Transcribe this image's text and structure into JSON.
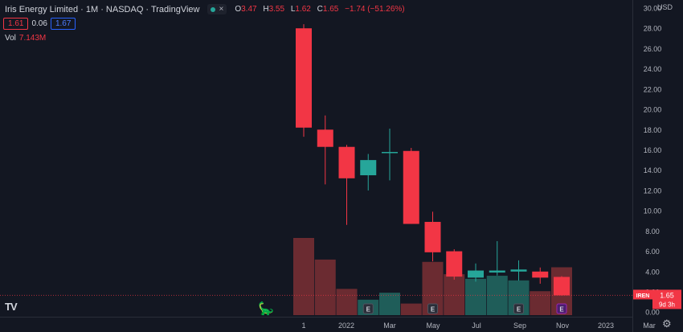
{
  "header": {
    "title": "Iris Energy Limited · 1M · NASDAQ · TradingView",
    "dot_label": "",
    "close_label": "×",
    "ohlc": {
      "o_label": "O",
      "o": "3.47",
      "h_label": "H",
      "h": "3.55",
      "l_label": "L",
      "l": "1.62",
      "c_label": "C",
      "c": "1.65",
      "change": "−1.74 (−51.26%)"
    }
  },
  "price_boxes": {
    "bid": "1.61",
    "spread": "0.06",
    "ask": "1.67"
  },
  "volume": {
    "label": "Vol",
    "value": "7.143M"
  },
  "currency": "USD",
  "tv_logo": "TV",
  "ticker_badge": {
    "symbol": "IREN",
    "price": "1.65",
    "countdown": "9d 3h"
  },
  "colors": {
    "up": "#26a69a",
    "down": "#f23645",
    "vol_up": "#1f5d59",
    "vol_down": "#6b2b31",
    "bg": "#131722",
    "grid": "#1e222d",
    "axis_text": "#b2b5be"
  },
  "chart_data": {
    "type": "candlestick",
    "y_axis": {
      "ylim": [
        -0.3,
        30.0
      ],
      "ticks": [
        0.0,
        2.0,
        4.0,
        6.0,
        8.0,
        10.0,
        12.0,
        14.0,
        16.0,
        18.0,
        20.0,
        22.0,
        24.0,
        26.0,
        28.0,
        30.0
      ],
      "tick_labels": [
        "0.00",
        "2.00",
        "4.00",
        "6.00",
        "8.00",
        "10.00",
        "12.00",
        "14.00",
        "16.00",
        "18.00",
        "20.00",
        "22.00",
        "24.00",
        "26.00",
        "28.00",
        "30.00"
      ]
    },
    "x_axis": {
      "tick_labels": [
        "1",
        "2022",
        "Mar",
        "May",
        "Jul",
        "Sep",
        "Nov",
        "2023",
        "Mar"
      ]
    },
    "candles": [
      {
        "month": "Nov 2021",
        "open": 28.0,
        "high": 28.4,
        "low": 17.3,
        "close": 18.2
      },
      {
        "month": "Dec 2021",
        "open": 18.0,
        "high": 19.4,
        "low": 12.6,
        "close": 16.3
      },
      {
        "month": "Jan 2022",
        "open": 16.3,
        "high": 16.5,
        "low": 8.6,
        "close": 13.2
      },
      {
        "month": "Feb 2022",
        "open": 13.5,
        "high": 15.6,
        "low": 12.0,
        "close": 15.0
      },
      {
        "month": "Mar 2022",
        "open": 15.7,
        "high": 18.1,
        "low": 13.0,
        "close": 15.8
      },
      {
        "month": "Apr 2022",
        "open": 15.9,
        "high": 16.2,
        "low": 8.7,
        "close": 8.7
      },
      {
        "month": "May 2022",
        "open": 8.9,
        "high": 9.9,
        "low": 5.0,
        "close": 5.9
      },
      {
        "month": "Jun 2022",
        "open": 6.0,
        "high": 6.2,
        "low": 3.2,
        "close": 3.5
      },
      {
        "month": "Jul 2022",
        "open": 3.4,
        "high": 4.8,
        "low": 3.0,
        "close": 4.1
      },
      {
        "month": "Aug 2022",
        "open": 3.9,
        "high": 7.0,
        "low": 3.6,
        "close": 4.1
      },
      {
        "month": "Sep 2022",
        "open": 4.0,
        "high": 5.1,
        "low": 3.1,
        "close": 4.2
      },
      {
        "month": "Oct 2022",
        "open": 4.0,
        "high": 4.4,
        "low": 2.8,
        "close": 3.4
      },
      {
        "month": "Nov 2022",
        "open": 3.47,
        "high": 3.55,
        "low": 1.62,
        "close": 1.65
      }
    ],
    "volume_rel": [
      1.0,
      0.72,
      0.34,
      0.2,
      0.29,
      0.15,
      0.69,
      0.53,
      0.47,
      0.51,
      0.45,
      0.31,
      0.62
    ],
    "earnings_months": [
      "Feb 2022",
      "May 2022",
      "Sep 2022",
      "Nov 2022"
    ],
    "earnings_glyph": "E"
  }
}
